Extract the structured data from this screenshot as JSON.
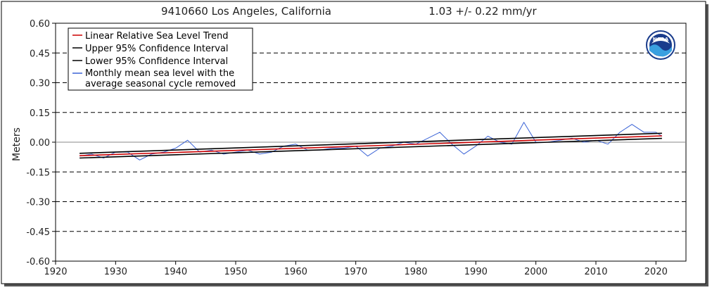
{
  "header": {
    "station": "9410660 Los Angeles, California",
    "trend": "1.03 +/-  0.22 mm/yr"
  },
  "logo": {
    "text": "NOAA"
  },
  "chart_data": {
    "type": "line",
    "title": "9410660 Los Angeles, California",
    "subtitle": "1.03 +/-  0.22 mm/yr",
    "xlabel": "",
    "ylabel": "Meters",
    "xlim": [
      1920,
      2025
    ],
    "ylim": [
      -0.6,
      0.6
    ],
    "xticks": [
      1920,
      1930,
      1940,
      1950,
      1960,
      1970,
      1980,
      1990,
      2000,
      2010,
      2020
    ],
    "yticks": [
      0.6,
      0.45,
      0.3,
      0.15,
      0.0,
      -0.15,
      -0.3,
      -0.45,
      -0.6
    ],
    "ytick_labels": [
      "0.60",
      "0.45",
      "0.30",
      "0.15",
      "0.00",
      "-0.15",
      "-0.30",
      "-0.45",
      "-0.60"
    ],
    "grid": "dashed horizontal",
    "legend_position": "top-left",
    "colors": {
      "trend": "#cc0000",
      "confidence": "#000000",
      "monthly": "#3a63d6",
      "zero_line": "#888888"
    },
    "series": [
      {
        "name": "Linear Relative Sea Level Trend",
        "style": "trend",
        "x": [
          1924,
          2021
        ],
        "y": [
          -0.068,
          0.032
        ]
      },
      {
        "name": "Upper 95% Confidence Interval",
        "style": "confidence",
        "x": [
          1924,
          2021
        ],
        "y": [
          -0.056,
          0.045
        ]
      },
      {
        "name": "Lower 95% Confidence Interval",
        "style": "confidence",
        "x": [
          1924,
          2021
        ],
        "y": [
          -0.08,
          0.019
        ]
      },
      {
        "name": "Monthly mean sea level with the average seasonal cycle removed",
        "style": "monthly",
        "x": [
          1924,
          1926,
          1928,
          1930,
          1932,
          1934,
          1936,
          1938,
          1940,
          1942,
          1944,
          1946,
          1948,
          1950,
          1952,
          1954,
          1956,
          1958,
          1960,
          1962,
          1964,
          1966,
          1968,
          1970,
          1972,
          1974,
          1976,
          1978,
          1980,
          1982,
          1984,
          1986,
          1988,
          1990,
          1992,
          1994,
          1996,
          1998,
          2000,
          2002,
          2004,
          2006,
          2008,
          2010,
          2012,
          2014,
          2016,
          2018,
          2020,
          2021
        ],
        "y": [
          -0.07,
          -0.06,
          -0.08,
          -0.05,
          -0.05,
          -0.09,
          -0.06,
          -0.05,
          -0.03,
          0.01,
          -0.05,
          -0.04,
          -0.06,
          -0.05,
          -0.04,
          -0.06,
          -0.05,
          -0.02,
          -0.01,
          -0.04,
          -0.04,
          -0.03,
          -0.03,
          -0.02,
          -0.07,
          -0.03,
          -0.02,
          0.0,
          -0.01,
          0.02,
          0.05,
          -0.01,
          -0.06,
          -0.02,
          0.03,
          0.0,
          -0.01,
          0.1,
          0.0,
          0.0,
          0.01,
          0.02,
          0.0,
          0.01,
          -0.01,
          0.05,
          0.09,
          0.05,
          0.05,
          0.03
        ]
      }
    ]
  }
}
